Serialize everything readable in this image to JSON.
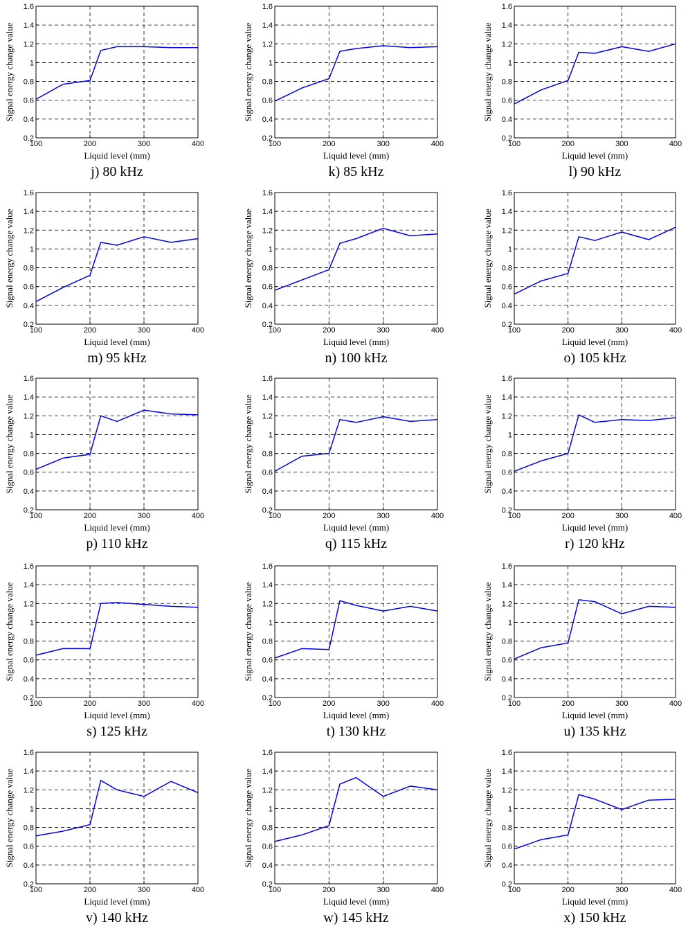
{
  "figure": {
    "shared": {
      "xlabel": "Liquid level (mm)",
      "ylabel": "Signal energy change value",
      "xticks": [
        100,
        200,
        300,
        400
      ],
      "yticks": [
        0.2,
        0.4,
        0.6,
        0.8,
        1,
        1.2,
        1.4,
        1.6
      ],
      "xlim": [
        100,
        400
      ],
      "ylim": [
        0.2,
        1.6
      ],
      "line_color": "#0000ee",
      "grid": "dashed, at x=200 and x=300 and every y tick"
    }
  },
  "chart_data": [
    {
      "type": "line",
      "caption": "j) 80 kHz",
      "xlabel": "Liquid level (mm)",
      "ylabel": "Signal energy change value",
      "xlim": [
        100,
        400
      ],
      "ylim": [
        0.2,
        1.6
      ],
      "x": [
        100,
        150,
        200,
        220,
        250,
        300,
        350,
        400
      ],
      "y": [
        0.61,
        0.77,
        0.81,
        1.13,
        1.17,
        1.17,
        1.16,
        1.16
      ]
    },
    {
      "type": "line",
      "caption": "k) 85 kHz",
      "xlabel": "Liquid level (mm)",
      "ylabel": "Signal energy change value",
      "xlim": [
        100,
        400
      ],
      "ylim": [
        0.2,
        1.6
      ],
      "x": [
        100,
        150,
        200,
        220,
        250,
        300,
        350,
        400
      ],
      "y": [
        0.59,
        0.73,
        0.83,
        1.12,
        1.15,
        1.18,
        1.16,
        1.17
      ]
    },
    {
      "type": "line",
      "caption": "l) 90 kHz",
      "xlabel": "Liquid level (mm)",
      "ylabel": "Signal energy change value",
      "xlim": [
        100,
        400
      ],
      "ylim": [
        0.2,
        1.6
      ],
      "x": [
        100,
        150,
        200,
        220,
        250,
        300,
        350,
        400
      ],
      "y": [
        0.56,
        0.71,
        0.81,
        1.11,
        1.1,
        1.17,
        1.12,
        1.2
      ]
    },
    {
      "type": "line",
      "caption": "m) 95 kHz",
      "xlabel": "Liquid level (mm)",
      "ylabel": "Signal energy change value",
      "xlim": [
        100,
        400
      ],
      "ylim": [
        0.2,
        1.6
      ],
      "x": [
        100,
        150,
        200,
        220,
        250,
        300,
        350,
        400
      ],
      "y": [
        0.44,
        0.59,
        0.72,
        1.07,
        1.04,
        1.13,
        1.07,
        1.11
      ]
    },
    {
      "type": "line",
      "caption": "n) 100 kHz",
      "xlabel": "Liquid level (mm)",
      "ylabel": "Signal energy change value",
      "xlim": [
        100,
        400
      ],
      "ylim": [
        0.2,
        1.6
      ],
      "x": [
        100,
        150,
        200,
        220,
        250,
        300,
        350,
        400
      ],
      "y": [
        0.56,
        0.67,
        0.78,
        1.06,
        1.11,
        1.22,
        1.14,
        1.16
      ]
    },
    {
      "type": "line",
      "caption": "o) 105 kHz",
      "xlabel": "Liquid level (mm)",
      "ylabel": "Signal energy change value",
      "xlim": [
        100,
        400
      ],
      "ylim": [
        0.2,
        1.6
      ],
      "x": [
        100,
        150,
        200,
        220,
        250,
        300,
        350,
        400
      ],
      "y": [
        0.52,
        0.66,
        0.74,
        1.13,
        1.09,
        1.18,
        1.1,
        1.23
      ]
    },
    {
      "type": "line",
      "caption": "p) 110 kHz",
      "xlabel": "Liquid level (mm)",
      "ylabel": "Signal energy change value",
      "xlim": [
        100,
        400
      ],
      "ylim": [
        0.2,
        1.6
      ],
      "x": [
        100,
        150,
        200,
        220,
        250,
        300,
        350,
        400
      ],
      "y": [
        0.63,
        0.75,
        0.79,
        1.2,
        1.14,
        1.26,
        1.22,
        1.21
      ]
    },
    {
      "type": "line",
      "caption": "q) 115 kHz",
      "xlabel": "Liquid level (mm)",
      "ylabel": "Signal energy change value",
      "xlim": [
        100,
        400
      ],
      "ylim": [
        0.2,
        1.6
      ],
      "x": [
        100,
        150,
        200,
        220,
        250,
        300,
        350,
        400
      ],
      "y": [
        0.61,
        0.77,
        0.8,
        1.16,
        1.13,
        1.19,
        1.14,
        1.16
      ]
    },
    {
      "type": "line",
      "caption": "r) 120 kHz",
      "xlabel": "Liquid level (mm)",
      "ylabel": "Signal energy change value",
      "xlim": [
        100,
        400
      ],
      "ylim": [
        0.2,
        1.6
      ],
      "x": [
        100,
        150,
        200,
        220,
        250,
        300,
        350,
        400
      ],
      "y": [
        0.61,
        0.72,
        0.8,
        1.21,
        1.13,
        1.16,
        1.15,
        1.18
      ]
    },
    {
      "type": "line",
      "caption": "s) 125 kHz",
      "xlabel": "Liquid level (mm)",
      "ylabel": "Signal energy change value",
      "xlim": [
        100,
        400
      ],
      "ylim": [
        0.2,
        1.6
      ],
      "x": [
        100,
        150,
        200,
        220,
        250,
        300,
        350,
        400
      ],
      "y": [
        0.65,
        0.72,
        0.72,
        1.2,
        1.21,
        1.19,
        1.17,
        1.16
      ]
    },
    {
      "type": "line",
      "caption": "t) 130 kHz",
      "xlabel": "Liquid level (mm)",
      "ylabel": "Signal energy change value",
      "xlim": [
        100,
        400
      ],
      "ylim": [
        0.2,
        1.6
      ],
      "x": [
        100,
        150,
        200,
        220,
        250,
        300,
        350,
        400
      ],
      "y": [
        0.62,
        0.72,
        0.71,
        1.23,
        1.18,
        1.12,
        1.17,
        1.12
      ]
    },
    {
      "type": "line",
      "caption": "u) 135 kHz",
      "xlabel": "Liquid level (mm)",
      "ylabel": "Signal energy change value",
      "xlim": [
        100,
        400
      ],
      "ylim": [
        0.2,
        1.6
      ],
      "x": [
        100,
        150,
        200,
        220,
        250,
        300,
        350,
        400
      ],
      "y": [
        0.61,
        0.73,
        0.78,
        1.24,
        1.22,
        1.09,
        1.17,
        1.16
      ]
    },
    {
      "type": "line",
      "caption": "v) 140 kHz",
      "xlabel": "Liquid level (mm)",
      "ylabel": "Signal energy change value",
      "xlim": [
        100,
        400
      ],
      "ylim": [
        0.2,
        1.6
      ],
      "x": [
        100,
        150,
        200,
        220,
        250,
        300,
        350,
        400
      ],
      "y": [
        0.71,
        0.76,
        0.83,
        1.3,
        1.2,
        1.13,
        1.29,
        1.17
      ]
    },
    {
      "type": "line",
      "caption": "w) 145 kHz",
      "xlabel": "Liquid level (mm)",
      "ylabel": "Signal energy change value",
      "xlim": [
        100,
        400
      ],
      "ylim": [
        0.2,
        1.6
      ],
      "x": [
        100,
        150,
        200,
        220,
        250,
        300,
        350,
        400
      ],
      "y": [
        0.65,
        0.72,
        0.82,
        1.26,
        1.33,
        1.13,
        1.24,
        1.2
      ]
    },
    {
      "type": "line",
      "caption": "x) 150 kHz",
      "xlabel": "Liquid level (mm)",
      "ylabel": "Signal energy change value",
      "xlim": [
        100,
        400
      ],
      "ylim": [
        0.2,
        1.6
      ],
      "x": [
        100,
        150,
        200,
        220,
        250,
        300,
        350,
        400
      ],
      "y": [
        0.57,
        0.67,
        0.72,
        1.15,
        1.1,
        0.99,
        1.09,
        1.1
      ]
    }
  ]
}
